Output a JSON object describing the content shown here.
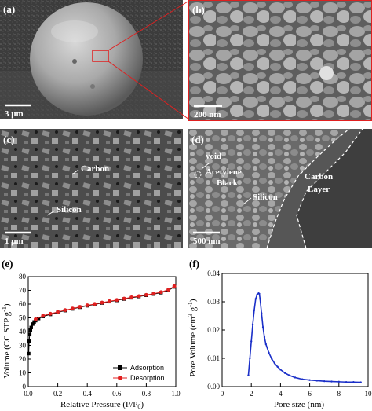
{
  "panel_a": {
    "label": "(a)",
    "scale_bar": "3 μm"
  },
  "panel_b": {
    "label": "(b)",
    "scale_bar": "200 nm"
  },
  "panel_c": {
    "label": "(c)",
    "scale_bar": "1 μm",
    "annotations": [
      "Carbon",
      "Silicon"
    ]
  },
  "panel_d": {
    "label": "(d)",
    "scale_bar": "500 nm",
    "annotations": [
      "void",
      "Acetylene",
      "Black",
      "Silicon",
      "Carbon",
      "Layer"
    ]
  },
  "panel_e": {
    "label": "(e)"
  },
  "panel_f": {
    "label": "(f)"
  },
  "colors": {
    "adsorption": "#000000",
    "desorption": "#e02020",
    "pore_curve": "#1a2fc8"
  },
  "chart_data": [
    {
      "type": "line",
      "panel": "(e)",
      "xlabel": "Relative Pressure (P/P0)",
      "ylabel": "Volume (CC STP g-1)",
      "xlim": [
        0.0,
        1.0
      ],
      "xticks": [
        "0.0",
        "0.2",
        "0.4",
        "0.6",
        "0.8",
        "1.0"
      ],
      "ylim": [
        0,
        80
      ],
      "yticks": [
        "0",
        "10",
        "20",
        "30",
        "40",
        "50",
        "60",
        "70",
        "80"
      ],
      "legend_position": "bottom-right",
      "series": [
        {
          "name": "Adsorption",
          "marker": "square",
          "x": [
            0.003,
            0.006,
            0.01,
            0.015,
            0.02,
            0.03,
            0.04,
            0.05,
            0.07,
            0.1,
            0.15,
            0.2,
            0.25,
            0.3,
            0.35,
            0.4,
            0.45,
            0.5,
            0.55,
            0.6,
            0.65,
            0.7,
            0.75,
            0.8,
            0.85,
            0.9,
            0.95,
            0.99
          ],
          "y": [
            24,
            33,
            38,
            41,
            43,
            45.5,
            47,
            48,
            49.5,
            51,
            52.5,
            54,
            55.3,
            56.5,
            57.7,
            58.8,
            59.8,
            60.8,
            61.8,
            62.7,
            63.7,
            64.6,
            65.5,
            66.4,
            67.3,
            68.3,
            70,
            72.5
          ]
        },
        {
          "name": "Desorption",
          "marker": "circle",
          "x": [
            0.05,
            0.1,
            0.15,
            0.2,
            0.25,
            0.3,
            0.35,
            0.4,
            0.45,
            0.5,
            0.55,
            0.6,
            0.65,
            0.7,
            0.75,
            0.8,
            0.85,
            0.9,
            0.95,
            0.99
          ],
          "y": [
            49,
            51.5,
            53,
            54.3,
            55.6,
            56.8,
            58,
            59.1,
            60.1,
            61.1,
            62.1,
            63,
            64,
            64.9,
            65.8,
            66.7,
            67.6,
            68.7,
            70.5,
            73
          ]
        }
      ]
    },
    {
      "type": "line",
      "panel": "(f)",
      "xlabel": "Pore size (nm)",
      "ylabel": "Pore Volume (cm3 g-1)",
      "xlim": [
        0,
        10
      ],
      "xticks": [
        "0",
        "2",
        "4",
        "6",
        "8",
        "10"
      ],
      "ylim": [
        0.0,
        0.04
      ],
      "yticks": [
        "0.00",
        "0.01",
        "0.02",
        "0.03",
        "0.04"
      ],
      "series": [
        {
          "marker": "small-dot",
          "x": [
            1.8,
            1.9,
            2.0,
            2.1,
            2.2,
            2.3,
            2.4,
            2.5,
            2.55,
            2.6,
            2.7,
            2.8,
            2.9,
            3.0,
            3.2,
            3.4,
            3.6,
            3.8,
            4.0,
            4.3,
            4.6,
            5.0,
            5.5,
            6.0,
            6.5,
            7.0,
            7.5,
            8.0,
            8.5,
            9.0,
            9.5
          ],
          "y": [
            0.004,
            0.01,
            0.016,
            0.022,
            0.027,
            0.031,
            0.0325,
            0.033,
            0.0328,
            0.031,
            0.026,
            0.021,
            0.0175,
            0.015,
            0.012,
            0.0098,
            0.0082,
            0.007,
            0.006,
            0.0048,
            0.004,
            0.0032,
            0.0026,
            0.0023,
            0.0021,
            0.0019,
            0.0018,
            0.0017,
            0.0016,
            0.0016,
            0.0015
          ]
        }
      ]
    }
  ]
}
